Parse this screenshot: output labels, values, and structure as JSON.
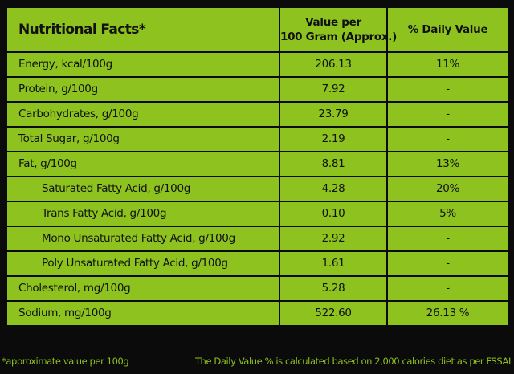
{
  "header": {
    "label": "Nutritional Facts*",
    "value_line1": "Value per",
    "value_line2": "100 Gram (Approx.)",
    "daily_value": "% Daily Value"
  },
  "rows": [
    {
      "label": "Energy, kcal/100g",
      "value": "206.13",
      "dv": "11%"
    },
    {
      "label": "Protein, g/100g",
      "value": "7.92",
      "dv": "-"
    },
    {
      "label": "Carbohydrates, g/100g",
      "value": "23.79",
      "dv": "-"
    },
    {
      "label": "Total Sugar, g/100g",
      "value": "2.19",
      "dv": "-"
    },
    {
      "label": "Fat, g/100g",
      "value": "8.81",
      "dv": "13%"
    },
    {
      "label": "Saturated Fatty Acid, g/100g",
      "value": "4.28",
      "dv": "20%"
    },
    {
      "label": "Trans Fatty Acid, g/100g",
      "value": "0.10",
      "dv": "5%"
    },
    {
      "label": "Mono Unsaturated Fatty Acid, g/100g",
      "value": "2.92",
      "dv": "-"
    },
    {
      "label": "Poly Unsaturated Fatty Acid, g/100g",
      "value": "1.61",
      "dv": "-"
    },
    {
      "label": "Cholesterol, mg/100g",
      "value": "5.28",
      "dv": "-"
    },
    {
      "label": "Sodium, mg/100g",
      "value": "522.60",
      "dv": "26.13 %"
    }
  ],
  "footer": {
    "left_note": "*approximate value per 100g",
    "right_note": "The Daily Value % is calculated based on 2,000 calories diet as per FSSAI"
  },
  "colors": {
    "background": "#0b0b0b",
    "cell": "#8dc21f",
    "text": "#111111"
  }
}
